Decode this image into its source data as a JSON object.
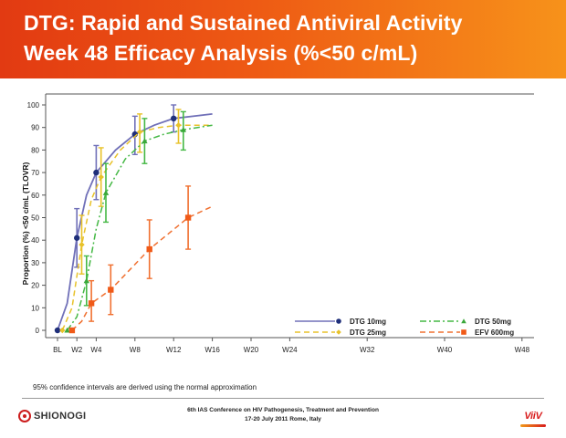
{
  "slide": {
    "title_line1": "DTG: Rapid and Sustained Antiviral Activity",
    "title_line2": "Week 48 Efficacy Analysis (%<50 c/mL)",
    "footnote": "95% confidence intervals are derived using the normal approximation",
    "conference_line1": "6th IAS Conference on HIV Pathogenesis, Treatment and Prevention",
    "conference_line2": "17-20 July 2011 Rome, Italy",
    "logo_left": "SHIONOGI",
    "logo_right": "ViiV",
    "header_gradient": [
      "#e23a12",
      "#f7921a"
    ]
  },
  "chart_data": {
    "type": "line",
    "title": "",
    "xlabel": "",
    "ylabel": "Proportion (%) <50 c/mL (TLOVR)",
    "ylim": [
      0,
      100
    ],
    "yticks": [
      0,
      10,
      20,
      30,
      40,
      50,
      60,
      70,
      80,
      90,
      100
    ],
    "x_categories": [
      "BL",
      "W2",
      "W4",
      "W8",
      "W12",
      "W16",
      "W20",
      "W24",
      "W32",
      "W40",
      "W48"
    ],
    "x_weeks": [
      0,
      2,
      4,
      8,
      12,
      16,
      20,
      24,
      32,
      40,
      48
    ],
    "grid": false,
    "legend_position": "bottom-right",
    "series": [
      {
        "name": "DTG 10mg",
        "color": "#7070b8",
        "marker_color": "#1f2f7a",
        "dash": "solid",
        "marker": "circle",
        "points": [
          {
            "x": 0,
            "y": 0,
            "ci": [
              0,
              0
            ]
          },
          {
            "x": 2,
            "y": 41,
            "ci": [
              28,
              54
            ]
          },
          {
            "x": 4,
            "y": 70,
            "ci": [
              58,
              82
            ]
          },
          {
            "x": 8,
            "y": 87,
            "ci": [
              78,
              95
            ]
          },
          {
            "x": 12,
            "y": 94,
            "ci": [
              88,
              100
            ]
          }
        ],
        "curve": [
          [
            0,
            0
          ],
          [
            1,
            12
          ],
          [
            2,
            41
          ],
          [
            3,
            60
          ],
          [
            4,
            70
          ],
          [
            5,
            75
          ],
          [
            6,
            80
          ],
          [
            8,
            87
          ],
          [
            10,
            91
          ],
          [
            12,
            94
          ],
          [
            14,
            95
          ],
          [
            16,
            96
          ]
        ]
      },
      {
        "name": "DTG 25mg",
        "color": "#e8c22a",
        "marker_color": "#e8c22a",
        "dash": "dash",
        "marker": "diamond",
        "points": [
          {
            "x": 0.5,
            "y": 0,
            "ci": [
              0,
              0
            ]
          },
          {
            "x": 2.5,
            "y": 38,
            "ci": [
              25,
              51
            ]
          },
          {
            "x": 4.5,
            "y": 68,
            "ci": [
              55,
              81
            ]
          },
          {
            "x": 8.5,
            "y": 88,
            "ci": [
              79,
              96
            ]
          },
          {
            "x": 12.5,
            "y": 91,
            "ci": [
              83,
              98
            ]
          }
        ],
        "curve": [
          [
            0.5,
            0
          ],
          [
            1.5,
            10
          ],
          [
            2.5,
            38
          ],
          [
            3.5,
            58
          ],
          [
            4.5,
            68
          ],
          [
            6.5,
            80
          ],
          [
            8.5,
            88
          ],
          [
            10.5,
            90
          ],
          [
            12.5,
            91
          ],
          [
            16,
            91
          ]
        ]
      },
      {
        "name": "DTG 50mg",
        "color": "#45b845",
        "marker_color": "#3aa83a",
        "dash": "dashdot",
        "marker": "triangle",
        "points": [
          {
            "x": 1,
            "y": 0,
            "ci": [
              0,
              0
            ]
          },
          {
            "x": 3,
            "y": 22,
            "ci": [
              11,
              33
            ]
          },
          {
            "x": 5,
            "y": 61,
            "ci": [
              48,
              74
            ]
          },
          {
            "x": 9,
            "y": 84,
            "ci": [
              74,
              94
            ]
          },
          {
            "x": 13,
            "y": 89,
            "ci": [
              80,
              97
            ]
          }
        ],
        "curve": [
          [
            1,
            0
          ],
          [
            2,
            6
          ],
          [
            3,
            22
          ],
          [
            4,
            45
          ],
          [
            5,
            61
          ],
          [
            7,
            76
          ],
          [
            9,
            84
          ],
          [
            11,
            87
          ],
          [
            13,
            89
          ],
          [
            16,
            91
          ]
        ]
      },
      {
        "name": "EFV 600mg",
        "color": "#f07030",
        "marker_color": "#f05a18",
        "dash": "dash",
        "marker": "square",
        "points": [
          {
            "x": 1.5,
            "y": 0,
            "ci": [
              0,
              0
            ]
          },
          {
            "x": 3.5,
            "y": 12,
            "ci": [
              4,
              22
            ]
          },
          {
            "x": 5.5,
            "y": 18,
            "ci": [
              7,
              29
            ]
          },
          {
            "x": 9.5,
            "y": 36,
            "ci": [
              23,
              49
            ]
          },
          {
            "x": 13.5,
            "y": 50,
            "ci": [
              36,
              64
            ]
          }
        ],
        "curve": [
          [
            1.5,
            0
          ],
          [
            2.5,
            4
          ],
          [
            3.5,
            12
          ],
          [
            5.5,
            18
          ],
          [
            7.5,
            27
          ],
          [
            9.5,
            36
          ],
          [
            11.5,
            43
          ],
          [
            13.5,
            50
          ],
          [
            16,
            55
          ]
        ]
      }
    ]
  }
}
